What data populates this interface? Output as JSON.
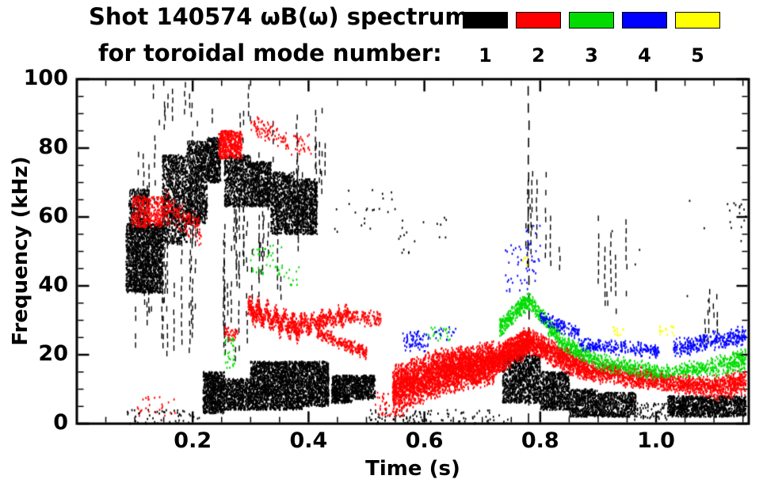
{
  "chart_data": {
    "type": "scatter",
    "title": "Shot 140574 ωB(ω) spectrum",
    "subtitle": "for toroidal mode number:",
    "xlabel": "Time (s)",
    "ylabel": "Frequency (kHz)",
    "xlim": [
      0,
      1.16
    ],
    "ylim": [
      0,
      100
    ],
    "xminor": 0.05,
    "yminor": 5,
    "grid": false,
    "legend_position": "top-right",
    "xticks": [
      {
        "label": "0.2",
        "value": 0.2
      },
      {
        "label": "0.4",
        "value": 0.4
      },
      {
        "label": "0.6",
        "value": 0.6
      },
      {
        "label": "0.8",
        "value": 0.8
      },
      {
        "label": "1.0",
        "value": 1.0
      }
    ],
    "yticks": [
      {
        "label": "0",
        "value": 0
      },
      {
        "label": "20",
        "value": 20
      },
      {
        "label": "40",
        "value": 40
      },
      {
        "label": "60",
        "value": 60
      },
      {
        "label": "80",
        "value": 80
      },
      {
        "label": "100",
        "value": 100
      }
    ],
    "legend": [
      {
        "label": "1",
        "color": "#000000"
      },
      {
        "label": "2",
        "color": "#ff0000"
      },
      {
        "label": "3",
        "color": "#00dc00"
      },
      {
        "label": "4",
        "color": "#0000ff"
      },
      {
        "label": "5",
        "color": "#ffff00"
      }
    ],
    "mode_colors": {
      "1": "#000000",
      "2": "#ff0000",
      "3": "#00dc00",
      "4": "#0000ff",
      "5": "#ffff00"
    },
    "clusters": [
      {
        "m": 1,
        "k": "blob",
        "t": [
          0.085,
          0.148
        ],
        "f": [
          38,
          58
        ],
        "n": 1600
      },
      {
        "m": 1,
        "k": "blob",
        "t": [
          0.09,
          0.125
        ],
        "f": [
          58,
          68
        ],
        "n": 280
      },
      {
        "m": 1,
        "k": "vstreaks",
        "t": [
          0.1,
          0.21
        ],
        "f": [
          15,
          85
        ],
        "n": 26
      },
      {
        "m": 1,
        "k": "vstreaks",
        "t": [
          0.125,
          0.17
        ],
        "f": [
          85,
          98
        ],
        "n": 6
      },
      {
        "m": 1,
        "k": "blob",
        "t": [
          0.148,
          0.19
        ],
        "f": [
          52,
          78
        ],
        "n": 900
      },
      {
        "m": 1,
        "k": "blob",
        "t": [
          0.19,
          0.225
        ],
        "f": [
          58,
          82
        ],
        "n": 850
      },
      {
        "m": 1,
        "k": "vstreaks",
        "t": [
          0.185,
          0.235
        ],
        "f": [
          85,
          98
        ],
        "n": 5
      },
      {
        "m": 1,
        "k": "blob",
        "t": [
          0.225,
          0.248
        ],
        "f": [
          70,
          83
        ],
        "n": 420
      },
      {
        "m": 1,
        "k": "vstreaks",
        "t": [
          0.24,
          0.32
        ],
        "f": [
          18,
          78
        ],
        "n": 20
      },
      {
        "m": 1,
        "k": "blob",
        "t": [
          0.255,
          0.3
        ],
        "f": [
          63,
          78
        ],
        "n": 650
      },
      {
        "m": 1,
        "k": "vstreaks",
        "t": [
          0.28,
          0.305
        ],
        "f": [
          80,
          97
        ],
        "n": 4
      },
      {
        "m": 1,
        "k": "blob",
        "t": [
          0.3,
          0.335
        ],
        "f": [
          63,
          76
        ],
        "n": 600
      },
      {
        "m": 1,
        "k": "blob",
        "t": [
          0.335,
          0.375
        ],
        "f": [
          55,
          73
        ],
        "n": 750
      },
      {
        "m": 1,
        "k": "blob",
        "t": [
          0.375,
          0.415
        ],
        "f": [
          55,
          71
        ],
        "n": 750
      },
      {
        "m": 1,
        "k": "vstreaks",
        "t": [
          0.32,
          0.42
        ],
        "f": [
          35,
          90
        ],
        "n": 14
      },
      {
        "m": 1,
        "k": "vstreaks",
        "t": [
          0.4,
          0.43
        ],
        "f": [
          60,
          92
        ],
        "n": 6
      },
      {
        "m": 1,
        "k": "blob",
        "t": [
          0.218,
          0.255
        ],
        "f": [
          3,
          15
        ],
        "n": 700
      },
      {
        "m": 1,
        "k": "blob",
        "t": [
          0.255,
          0.3
        ],
        "f": [
          4,
          13
        ],
        "n": 520
      },
      {
        "m": 1,
        "k": "blob",
        "t": [
          0.3,
          0.345
        ],
        "f": [
          4,
          18
        ],
        "n": 900
      },
      {
        "m": 1,
        "k": "blob",
        "t": [
          0.345,
          0.39
        ],
        "f": [
          4,
          18
        ],
        "n": 900
      },
      {
        "m": 1,
        "k": "blob",
        "t": [
          0.39,
          0.435
        ],
        "f": [
          5,
          18
        ],
        "n": 850
      },
      {
        "m": 1,
        "k": "blob",
        "t": [
          0.44,
          0.475
        ],
        "f": [
          6,
          14
        ],
        "n": 480
      },
      {
        "m": 1,
        "k": "blob",
        "t": [
          0.475,
          0.515
        ],
        "f": [
          7,
          14
        ],
        "n": 420
      },
      {
        "m": 1,
        "k": "dots",
        "t": [
          0.08,
          0.22
        ],
        "f": [
          0,
          4
        ],
        "n": 50
      },
      {
        "m": 1,
        "k": "dots",
        "t": [
          0.5,
          0.6
        ],
        "f": [
          0,
          4
        ],
        "n": 60
      },
      {
        "m": 1,
        "k": "dots",
        "t": [
          0.44,
          0.55
        ],
        "f": [
          55,
          68
        ],
        "n": 22
      },
      {
        "m": 1,
        "k": "dots",
        "t": [
          0.555,
          0.6
        ],
        "f": [
          45,
          60
        ],
        "n": 12
      },
      {
        "m": 1,
        "k": "dots",
        "t": [
          0.6,
          0.75
        ],
        "f": [
          0,
          4
        ],
        "n": 45
      },
      {
        "m": 1,
        "k": "dashedstreak",
        "t": [
          0.78,
          0.78
        ],
        "f": [
          0,
          98
        ],
        "n": 1
      },
      {
        "m": 1,
        "k": "vstreaks",
        "t": [
          0.762,
          0.84
        ],
        "f": [
          40,
          78
        ],
        "n": 8
      },
      {
        "m": 1,
        "k": "blob",
        "t": [
          0.735,
          0.8
        ],
        "f": [
          6,
          20
        ],
        "n": 1000
      },
      {
        "m": 1,
        "k": "blob",
        "t": [
          0.8,
          0.85
        ],
        "f": [
          4,
          15
        ],
        "n": 700
      },
      {
        "m": 1,
        "k": "blob",
        "t": [
          0.85,
          0.9
        ],
        "f": [
          2,
          10
        ],
        "n": 480
      },
      {
        "m": 1,
        "k": "blob",
        "t": [
          0.9,
          0.965
        ],
        "f": [
          2,
          9
        ],
        "n": 520
      },
      {
        "m": 1,
        "k": "vstreaks",
        "t": [
          0.895,
          0.95
        ],
        "f": [
          25,
          60
        ],
        "n": 6
      },
      {
        "m": 1,
        "k": "blob",
        "t": [
          1.02,
          1.155
        ],
        "f": [
          2,
          8
        ],
        "n": 1100
      },
      {
        "m": 1,
        "k": "vstreaks",
        "t": [
          1.07,
          1.13
        ],
        "f": [
          20,
          38
        ],
        "n": 6
      },
      {
        "m": 1,
        "k": "dots",
        "t": [
          1.12,
          1.155
        ],
        "f": [
          52,
          65
        ],
        "n": 14
      },
      {
        "m": 1,
        "k": "dots",
        "t": [
          0.95,
          1.02
        ],
        "f": [
          1,
          6
        ],
        "n": 70
      },
      {
        "m": 1,
        "k": "dots",
        "t": [
          0.61,
          0.64
        ],
        "f": [
          54,
          60
        ],
        "n": 6
      },
      {
        "m": 1,
        "k": "dots",
        "t": [
          0.88,
          1.15
        ],
        "f": [
          30,
          65
        ],
        "n": 8
      },
      {
        "m": 2,
        "k": "blob",
        "t": [
          0.095,
          0.15
        ],
        "f": [
          57,
          66
        ],
        "n": 330
      },
      {
        "m": 2,
        "k": "band",
        "t": [
          0.15,
          0.215
        ],
        "f": [
          63,
          56
        ],
        "w": 3,
        "n": 160
      },
      {
        "m": 2,
        "k": "dots",
        "t": [
          0.1,
          0.17
        ],
        "f": [
          2,
          8
        ],
        "n": 26
      },
      {
        "m": 2,
        "k": "blob",
        "t": [
          0.245,
          0.285
        ],
        "f": [
          77,
          85
        ],
        "n": 420
      },
      {
        "m": 2,
        "k": "band",
        "t": [
          0.3,
          0.365
        ],
        "f": [
          87,
          82
        ],
        "w": 2,
        "n": 90
      },
      {
        "m": 2,
        "k": "dots",
        "t": [
          0.37,
          0.405
        ],
        "f": [
          78,
          84
        ],
        "n": 30
      },
      {
        "m": 2,
        "k": "band",
        "t": [
          0.295,
          0.39
        ],
        "f": [
          33,
          27.5
        ],
        "w": 2.2,
        "wig": 1.6,
        "wf": 40,
        "n": 620
      },
      {
        "m": 2,
        "k": "band",
        "t": [
          0.39,
          0.47
        ],
        "f": [
          28.5,
          31.5
        ],
        "w": 1.8,
        "wig": 1.2,
        "wf": 35,
        "n": 340
      },
      {
        "m": 2,
        "k": "band",
        "t": [
          0.47,
          0.525
        ],
        "f": [
          31,
          30
        ],
        "w": 1.5,
        "n": 110
      },
      {
        "m": 2,
        "k": "band",
        "t": [
          0.415,
          0.5
        ],
        "f": [
          26.5,
          20.5
        ],
        "w": 1.3,
        "n": 240
      },
      {
        "m": 2,
        "k": "dots",
        "t": [
          0.255,
          0.278
        ],
        "f": [
          24,
          28
        ],
        "n": 36
      },
      {
        "m": 2,
        "k": "band",
        "t": [
          0.545,
          0.635
        ],
        "f": [
          10,
          15
        ],
        "w": 4.5,
        "n": 1500
      },
      {
        "m": 2,
        "k": "band",
        "t": [
          0.635,
          0.72
        ],
        "f": [
          15,
          18
        ],
        "w": 4,
        "n": 1700
      },
      {
        "m": 2,
        "k": "band",
        "t": [
          0.72,
          0.78
        ],
        "f": [
          18,
          24
        ],
        "w": 2.8,
        "n": 900
      },
      {
        "m": 2,
        "k": "band",
        "t": [
          0.78,
          0.88
        ],
        "f": [
          24,
          15.5
        ],
        "w": 2.4,
        "n": 900
      },
      {
        "m": 2,
        "k": "band",
        "t": [
          0.88,
          1.0
        ],
        "f": [
          15.5,
          12.5
        ],
        "w": 2,
        "n": 680
      },
      {
        "m": 2,
        "k": "band",
        "t": [
          1.0,
          1.1
        ],
        "f": [
          12.5,
          10.5
        ],
        "w": 1.8,
        "n": 520
      },
      {
        "m": 2,
        "k": "band",
        "t": [
          1.1,
          1.155
        ],
        "f": [
          10.5,
          12
        ],
        "w": 2.4,
        "n": 340
      },
      {
        "m": 2,
        "k": "dots",
        "t": [
          0.515,
          0.565
        ],
        "f": [
          2,
          9
        ],
        "n": 70
      },
      {
        "m": 3,
        "k": "dots",
        "t": [
          0.3,
          0.355
        ],
        "f": [
          43,
          52
        ],
        "n": 40
      },
      {
        "m": 3,
        "k": "dots",
        "t": [
          0.255,
          0.272
        ],
        "f": [
          16,
          25
        ],
        "n": 30
      },
      {
        "m": 3,
        "k": "dots",
        "t": [
          0.6,
          0.645
        ],
        "f": [
          24,
          28
        ],
        "n": 24
      },
      {
        "m": 3,
        "k": "band",
        "t": [
          0.73,
          0.78
        ],
        "f": [
          28,
          36
        ],
        "w": 1.8,
        "n": 260
      },
      {
        "m": 3,
        "k": "band",
        "t": [
          0.78,
          0.835
        ],
        "f": [
          36,
          24
        ],
        "w": 1.8,
        "n": 230
      },
      {
        "m": 3,
        "k": "band",
        "t": [
          0.835,
          0.9
        ],
        "f": [
          24,
          18
        ],
        "w": 1.6,
        "n": 230
      },
      {
        "m": 3,
        "k": "band",
        "t": [
          0.9,
          1.0
        ],
        "f": [
          18,
          15
        ],
        "w": 1.6,
        "n": 260
      },
      {
        "m": 3,
        "k": "band",
        "t": [
          1.0,
          1.09
        ],
        "f": [
          15,
          16
        ],
        "w": 1.6,
        "n": 210
      },
      {
        "m": 3,
        "k": "band",
        "t": [
          1.09,
          1.155
        ],
        "f": [
          16,
          18.5
        ],
        "w": 2.2,
        "n": 220
      },
      {
        "m": 3,
        "k": "dots",
        "t": [
          0.355,
          0.385
        ],
        "f": [
          40,
          46
        ],
        "n": 12
      },
      {
        "m": 4,
        "k": "dots",
        "t": [
          0.562,
          0.608
        ],
        "f": [
          21,
          27
        ],
        "n": 70
      },
      {
        "m": 4,
        "k": "dots",
        "t": [
          0.615,
          0.655
        ],
        "f": [
          24,
          28
        ],
        "n": 16
      },
      {
        "m": 4,
        "k": "dots",
        "t": [
          0.74,
          0.8
        ],
        "f": [
          38,
          52
        ],
        "n": 46
      },
      {
        "m": 4,
        "k": "band",
        "t": [
          0.8,
          0.868
        ],
        "f": [
          31,
          26
        ],
        "w": 1.6,
        "n": 130
      },
      {
        "m": 4,
        "k": "band",
        "t": [
          0.868,
          1.005
        ],
        "f": [
          23,
          21
        ],
        "w": 1.4,
        "n": 270
      },
      {
        "m": 4,
        "k": "band",
        "t": [
          1.03,
          1.155
        ],
        "f": [
          22,
          25.5
        ],
        "w": 1.8,
        "n": 330
      },
      {
        "m": 4,
        "k": "dots",
        "t": [
          0.775,
          0.8
        ],
        "f": [
          52,
          58
        ],
        "n": 8
      },
      {
        "m": 5,
        "k": "dots",
        "t": [
          0.925,
          0.947
        ],
        "f": [
          25.5,
          28
        ],
        "n": 12
      },
      {
        "m": 5,
        "k": "dots",
        "t": [
          1.005,
          1.032
        ],
        "f": [
          25.5,
          28.5
        ],
        "n": 16
      },
      {
        "m": 5,
        "k": "dots",
        "t": [
          0.77,
          0.783
        ],
        "f": [
          46,
          49
        ],
        "n": 5
      }
    ]
  }
}
